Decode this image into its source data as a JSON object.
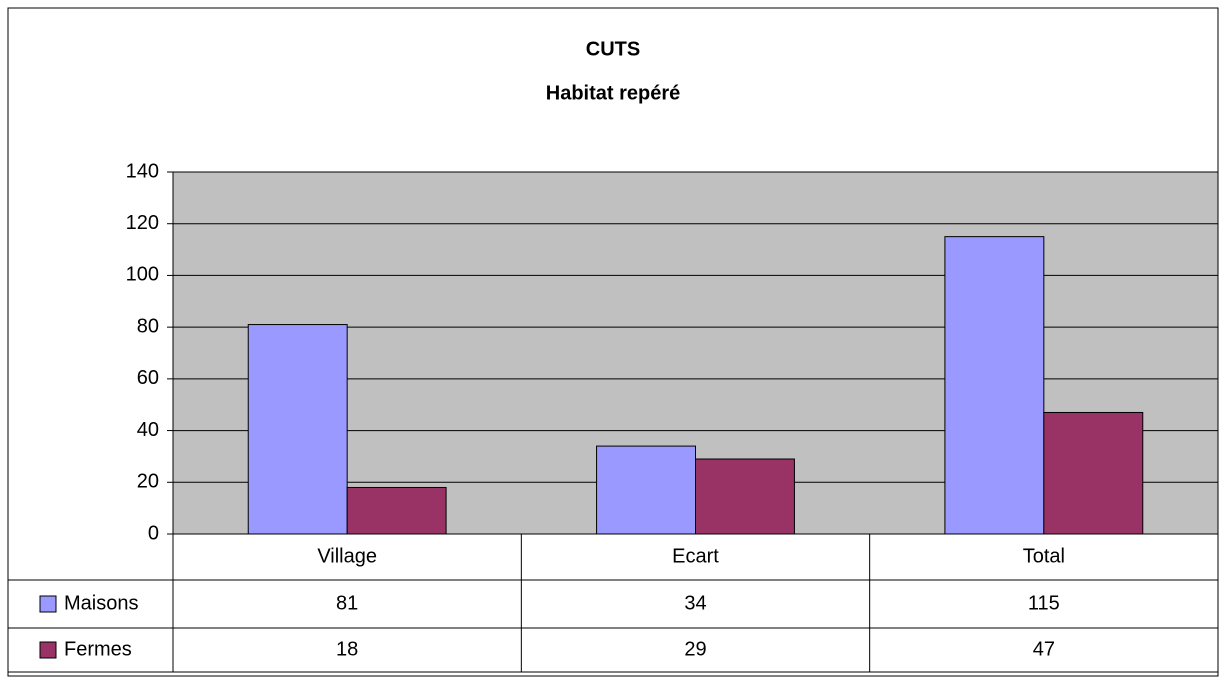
{
  "chart_data": {
    "type": "bar",
    "title": "CUTS",
    "subtitle": "Habitat repéré",
    "categories": [
      "Village",
      "Ecart",
      "Total"
    ],
    "series": [
      {
        "name": "Maisons",
        "color": "#9999ff",
        "values": [
          81,
          34,
          115
        ]
      },
      {
        "name": "Fermes",
        "color": "#993366",
        "values": [
          18,
          29,
          47
        ]
      }
    ],
    "ylim": [
      0,
      140
    ],
    "yticks": [
      0,
      20,
      40,
      60,
      80,
      100,
      120,
      140
    ],
    "grid": true,
    "plot_background": "#c0c0c0"
  }
}
